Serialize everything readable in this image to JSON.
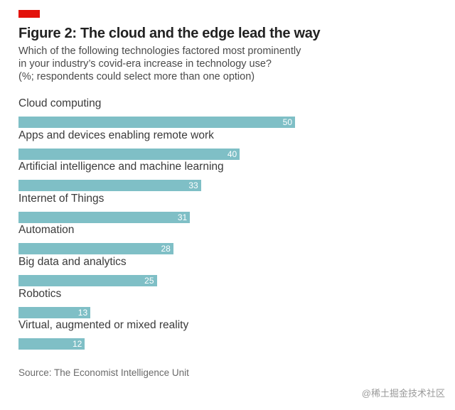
{
  "header": {
    "title": "Figure 2: The cloud and the edge lead the way",
    "subtitle_lines": [
      "Which of the following technologies factored most prominently",
      "in your industry’s covid-era increase in technology use?",
      "(%; respondents could select more than one option)"
    ]
  },
  "colors": {
    "accent": "#e3120b",
    "bar": "#7fbfc6",
    "bar_label": "#ffffff"
  },
  "chart_data": {
    "type": "bar",
    "orientation": "horizontal",
    "title": "Figure 2: The cloud and the edge lead the way",
    "subtitle": "Which of the following technologies factored most prominently in your industry’s covid-era increase in technology use? (%; respondents could select more than one option)",
    "categories": [
      "Cloud computing",
      "Apps and devices enabling remote work",
      "Artificial intelligence and machine learning",
      "Internet of Things",
      "Automation",
      "Big data and analytics",
      "Robotics",
      "Virtual, augmented or mixed reality"
    ],
    "values": [
      50,
      40,
      33,
      31,
      28,
      25,
      13,
      12
    ],
    "xlim": [
      0,
      50
    ],
    "grid": false,
    "legend": "none",
    "source": "Source: The Economist Intelligence Unit"
  },
  "watermark": "@稀土掘金技术社区"
}
